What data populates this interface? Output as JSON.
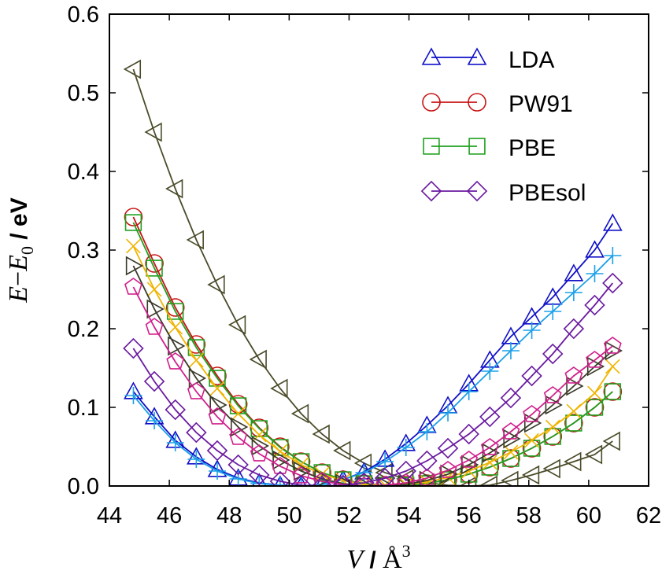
{
  "chart_data": {
    "type": "line",
    "xlabel": {
      "var": "V",
      "sep": " / ",
      "unit": "Å",
      "exp": "3"
    },
    "ylabel": {
      "var1": "E",
      "minus": "−",
      "var2": "E",
      "sub": "0",
      "unit": " / eV"
    },
    "xlim": [
      44,
      62
    ],
    "ylim": [
      0.0,
      0.6
    ],
    "xticks": [
      "44",
      "46",
      "48",
      "50",
      "52",
      "54",
      "56",
      "58",
      "60",
      "62"
    ],
    "yticks": [
      "0.0",
      "0.1",
      "0.2",
      "0.3",
      "0.4",
      "0.5",
      "0.6"
    ],
    "legend_position": "top-right",
    "legend": [
      "LDA",
      "PW91",
      "PBE",
      "PBEsol"
    ],
    "series": [
      {
        "name": "series-olive-left-triangle",
        "color": "#4b4b2a",
        "marker": "triangle-left",
        "x": [
          44.8,
          45.5,
          46.2,
          46.9,
          47.6,
          48.3,
          49.0,
          49.7,
          50.4,
          51.1,
          51.8,
          52.5,
          53.2,
          53.9,
          54.6,
          55.3,
          56.0,
          56.7,
          57.4,
          58.1,
          58.8,
          59.5,
          60.2,
          60.8
        ],
        "y": [
          0.53,
          0.45,
          0.378,
          0.313,
          0.256,
          0.205,
          0.161,
          0.124,
          0.092,
          0.066,
          0.045,
          0.029,
          0.017,
          0.009,
          0.004,
          0.001,
          0.0,
          0.001,
          0.007,
          0.014,
          0.022,
          0.031,
          0.04,
          0.057
        ]
      },
      {
        "name": "LDA",
        "color": "#1010c8",
        "marker": "triangle-up",
        "x": [
          44.8,
          45.5,
          46.2,
          46.9,
          47.6,
          48.3,
          49.0,
          49.7,
          50.4,
          51.1,
          51.8,
          52.5,
          53.2,
          53.9,
          54.6,
          55.3,
          56.0,
          56.7,
          57.4,
          58.1,
          58.8,
          59.5,
          60.2,
          60.8
        ],
        "y": [
          0.12,
          0.088,
          0.058,
          0.037,
          0.021,
          0.01,
          0.004,
          0.001,
          0.0,
          0.002,
          0.008,
          0.018,
          0.034,
          0.054,
          0.077,
          0.102,
          0.13,
          0.16,
          0.19,
          0.215,
          0.24,
          0.27,
          0.3,
          0.334
        ]
      },
      {
        "name": "series-lightblue-plus",
        "color": "#1aa0e8",
        "marker": "plus",
        "x": [
          44.8,
          45.5,
          46.2,
          46.9,
          47.6,
          48.3,
          49.0,
          49.7,
          50.4,
          51.1,
          51.8,
          52.5,
          53.2,
          53.9,
          54.6,
          55.3,
          56.0,
          56.7,
          57.4,
          58.1,
          58.8,
          59.5,
          60.2,
          60.8
        ],
        "y": [
          0.115,
          0.083,
          0.055,
          0.034,
          0.019,
          0.009,
          0.003,
          0.001,
          0.0,
          0.002,
          0.008,
          0.017,
          0.031,
          0.049,
          0.069,
          0.093,
          0.12,
          0.146,
          0.172,
          0.198,
          0.222,
          0.246,
          0.27,
          0.293
        ]
      },
      {
        "name": "PW91",
        "color": "#c81414",
        "marker": "circle",
        "x": [
          44.8,
          45.5,
          46.2,
          46.9,
          47.6,
          48.3,
          49.0,
          49.7,
          50.4,
          51.1,
          51.8,
          52.5,
          53.2,
          53.9,
          54.6,
          55.3,
          56.0,
          56.7,
          57.4,
          58.1,
          58.8,
          59.5,
          60.2,
          60.8
        ],
        "y": [
          0.342,
          0.283,
          0.227,
          0.18,
          0.14,
          0.104,
          0.074,
          0.05,
          0.031,
          0.017,
          0.008,
          0.003,
          0.001,
          0.001,
          0.003,
          0.008,
          0.015,
          0.024,
          0.035,
          0.048,
          0.063,
          0.08,
          0.1,
          0.12
        ]
      },
      {
        "name": "PBE",
        "color": "#20a020",
        "marker": "square",
        "x": [
          44.8,
          45.5,
          46.2,
          46.9,
          47.6,
          48.3,
          49.0,
          49.7,
          50.4,
          51.1,
          51.8,
          52.5,
          53.2,
          53.9,
          54.6,
          55.3,
          56.0,
          56.7,
          57.4,
          58.1,
          58.8,
          59.5,
          60.2,
          60.8
        ],
        "y": [
          0.335,
          0.277,
          0.222,
          0.176,
          0.137,
          0.102,
          0.073,
          0.049,
          0.031,
          0.017,
          0.008,
          0.003,
          0.001,
          0.001,
          0.003,
          0.008,
          0.015,
          0.024,
          0.035,
          0.048,
          0.063,
          0.08,
          0.1,
          0.12
        ]
      },
      {
        "name": "series-orange-cross",
        "color": "#f0b400",
        "marker": "x",
        "x": [
          44.8,
          45.5,
          46.2,
          46.9,
          47.6,
          48.3,
          49.0,
          49.7,
          50.4,
          51.1,
          51.8,
          52.5,
          53.2,
          53.9,
          54.6,
          55.3,
          56.0,
          56.7,
          57.4,
          58.1,
          58.8,
          59.5,
          60.2,
          60.8
        ],
        "y": [
          0.305,
          0.25,
          0.202,
          0.16,
          0.124,
          0.092,
          0.065,
          0.044,
          0.027,
          0.015,
          0.007,
          0.002,
          0.001,
          0.002,
          0.005,
          0.011,
          0.019,
          0.03,
          0.043,
          0.058,
          0.075,
          0.095,
          0.118,
          0.152
        ]
      },
      {
        "name": "series-darkolive-right-triangle",
        "color": "#3a3a2a",
        "marker": "triangle-right",
        "x": [
          44.8,
          45.5,
          46.2,
          46.9,
          47.6,
          48.3,
          49.0,
          49.7,
          50.4,
          51.1,
          51.8,
          52.5,
          53.2,
          53.9,
          54.6,
          55.3,
          56.0,
          56.7,
          57.4,
          58.1,
          58.8,
          59.5,
          60.2,
          60.8
        ],
        "y": [
          0.28,
          0.225,
          0.178,
          0.137,
          0.103,
          0.075,
          0.051,
          0.033,
          0.019,
          0.009,
          0.003,
          0.0,
          0.0,
          0.002,
          0.007,
          0.015,
          0.027,
          0.042,
          0.06,
          0.08,
          0.103,
          0.127,
          0.152,
          0.172
        ]
      },
      {
        "name": "series-magenta-pentagon",
        "color": "#d0208c",
        "marker": "pentagon",
        "x": [
          44.8,
          45.5,
          46.2,
          46.9,
          47.6,
          48.3,
          49.0,
          49.7,
          50.4,
          51.1,
          51.8,
          52.5,
          53.2,
          53.9,
          54.6,
          55.3,
          56.0,
          56.7,
          57.4,
          58.1,
          58.8,
          59.5,
          60.2,
          60.8
        ],
        "y": [
          0.253,
          0.202,
          0.158,
          0.12,
          0.088,
          0.062,
          0.041,
          0.025,
          0.013,
          0.006,
          0.002,
          0.0,
          0.001,
          0.004,
          0.01,
          0.02,
          0.033,
          0.049,
          0.069,
          0.091,
          0.115,
          0.14,
          0.16,
          0.178
        ]
      },
      {
        "name": "PBEsol",
        "color": "#6a1aa0",
        "marker": "diamond",
        "x": [
          44.8,
          45.5,
          46.2,
          46.9,
          47.6,
          48.3,
          49.0,
          49.7,
          50.4,
          51.1,
          51.8,
          52.5,
          53.2,
          53.9,
          54.6,
          55.3,
          56.0,
          56.7,
          57.4,
          58.1,
          58.8,
          59.5,
          60.2,
          60.8
        ],
        "y": [
          0.175,
          0.133,
          0.097,
          0.068,
          0.045,
          0.027,
          0.014,
          0.006,
          0.001,
          0.0,
          0.001,
          0.004,
          0.01,
          0.019,
          0.032,
          0.048,
          0.066,
          0.088,
          0.112,
          0.14,
          0.168,
          0.2,
          0.23,
          0.258
        ]
      }
    ]
  }
}
